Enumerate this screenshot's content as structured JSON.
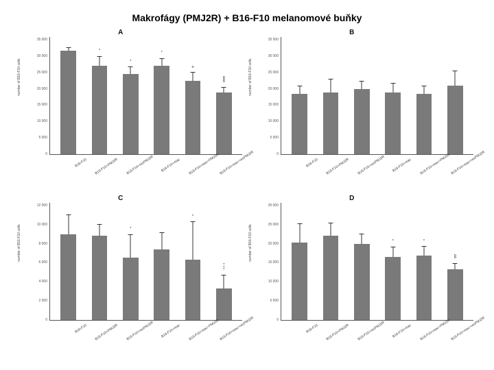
{
  "title": "Makrofágy (PMJ2R) + B16-F10 melanomové buňky",
  "categories": [
    "B16-F10",
    "B16-F10+PMJ2R",
    "B16-F10+resPMJ2R",
    "B16-F10+mac",
    "B16-F10+mac+PMJ2R",
    "B16-F10+mac+resPMJ2R"
  ],
  "ylabel": "number of B16-F10 cells",
  "colors": {
    "bar": "#7a7a7a",
    "axis": "#555555",
    "text": "#111111",
    "bg": "#ffffff"
  },
  "panels": {
    "A": {
      "label": "A",
      "ylim": [
        0,
        35000
      ],
      "ytick_step": 5000,
      "values": [
        31000,
        26500,
        24000,
        26500,
        22000,
        18500
      ],
      "err_up": [
        1000,
        2800,
        2200,
        2200,
        2500,
        1600
      ],
      "err_down": [
        1000,
        2800,
        2200,
        2200,
        2500,
        1600
      ],
      "sig": [
        "",
        "*",
        "*",
        "*",
        "o",
        "ooo"
      ]
    },
    "B": {
      "label": "B",
      "ylim": [
        0,
        35000
      ],
      "ytick_step": 5000,
      "values": [
        18000,
        18500,
        19500,
        18500,
        18000,
        20500
      ],
      "err_up": [
        2400,
        4000,
        2500,
        2800,
        2500,
        4500
      ],
      "err_down": [
        2400,
        4000,
        2500,
        2800,
        2500,
        4500
      ],
      "sig": [
        "",
        "",
        "",
        "",
        "",
        ""
      ]
    },
    "C": {
      "label": "C",
      "ylim": [
        0,
        12000
      ],
      "ytick_step": 2000,
      "values": [
        8800,
        8600,
        6400,
        7200,
        6200,
        3200
      ],
      "err_up": [
        2000,
        1200,
        2400,
        1800,
        3900,
        1400
      ],
      "err_down": [
        2000,
        1200,
        2400,
        1800,
        3900,
        1400
      ],
      "sig": [
        "",
        "",
        "*",
        "",
        "*",
        "***"
      ]
    },
    "D": {
      "label": "D",
      "ylim": [
        0,
        30000
      ],
      "ytick_step": 5000,
      "values": [
        19800,
        21500,
        19500,
        16200,
        16500,
        13000
      ],
      "err_up": [
        5000,
        3400,
        2600,
        2600,
        2400,
        1600
      ],
      "err_down": [
        5000,
        3400,
        2600,
        2600,
        2400,
        1600
      ],
      "sig": [
        "",
        "",
        "",
        "*",
        "*",
        "oo"
      ]
    }
  }
}
